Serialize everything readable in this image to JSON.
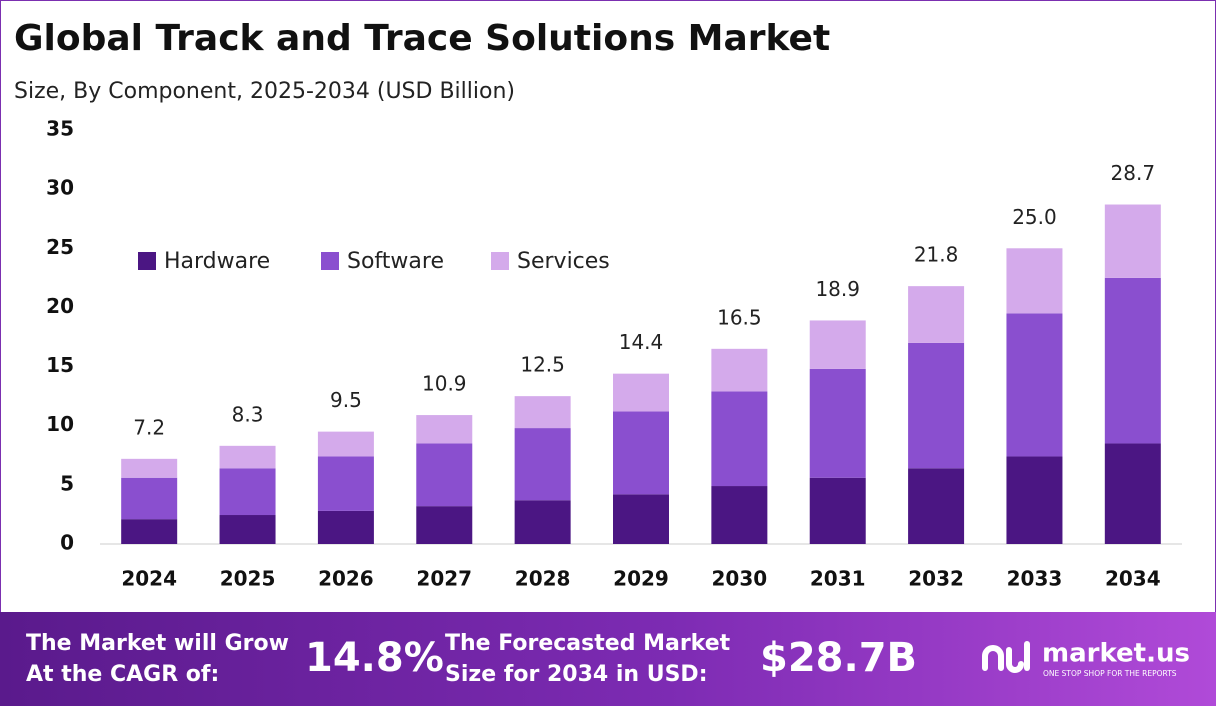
{
  "chart_data": {
    "type": "stacked_bar",
    "title": "Global Track and Trace Solutions Market",
    "subtitle": "Size, By Component, 2025-2034 (USD Billion)",
    "categories": [
      "2024",
      "2025",
      "2026",
      "2027",
      "2028",
      "2029",
      "2030",
      "2031",
      "2032",
      "2033",
      "2034"
    ],
    "series": [
      {
        "name": "Hardware",
        "color": "#4b1683",
        "values": [
          2.1,
          2.45,
          2.8,
          3.2,
          3.7,
          4.2,
          4.9,
          5.6,
          6.4,
          7.4,
          8.5
        ]
      },
      {
        "name": "Software",
        "color": "#8a4fcf",
        "values": [
          3.5,
          3.95,
          4.6,
          5.3,
          6.1,
          7.0,
          8.0,
          9.2,
          10.6,
          12.1,
          14.0
        ]
      },
      {
        "name": "Services",
        "color": "#d4aaeb",
        "values": [
          1.6,
          1.9,
          2.1,
          2.4,
          2.7,
          3.2,
          3.6,
          4.1,
          4.8,
          5.5,
          6.2
        ]
      }
    ],
    "totals": [
      7.2,
      8.3,
      9.5,
      10.9,
      12.5,
      14.4,
      16.5,
      18.9,
      21.8,
      25.0,
      28.7
    ],
    "total_labels": [
      "7.2",
      "8.3",
      "9.5",
      "10.9",
      "12.5",
      "14.4",
      "16.5",
      "18.9",
      "21.8",
      "25.0",
      "28.7"
    ],
    "ylim": [
      0,
      35
    ],
    "yticks": [
      0,
      5,
      10,
      15,
      20,
      25,
      30,
      35
    ],
    "grid": false,
    "legend": "top-left"
  },
  "footer": {
    "cagr_label": [
      "The Market will Grow",
      "At the CAGR of:"
    ],
    "cagr": "14.8%",
    "forecast_label": [
      "The Forecasted Market",
      "Size for 2034 in USD:"
    ],
    "forecast": "$28.7B",
    "brand": "market.us",
    "tagline": "ONE STOP SHOP FOR THE REPORTS"
  }
}
